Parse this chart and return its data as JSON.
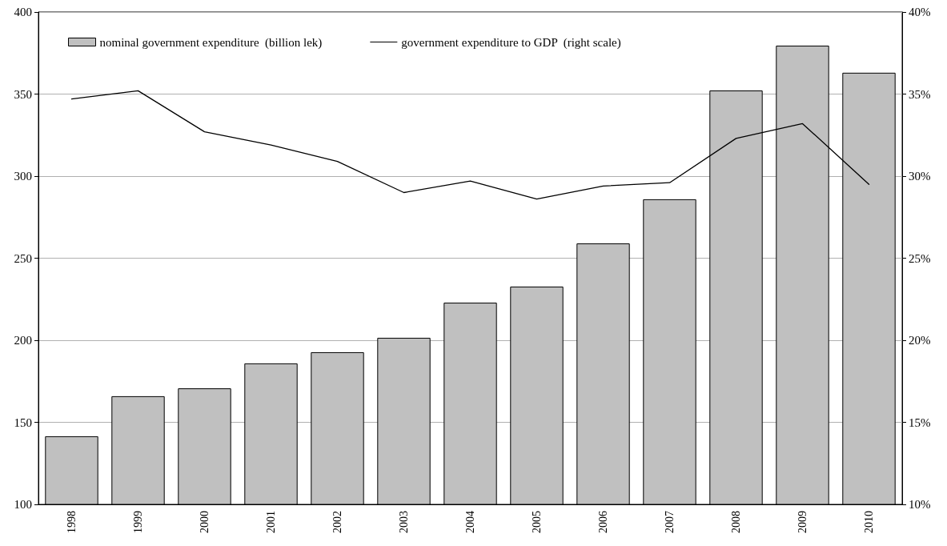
{
  "chart_data": {
    "type": "bar",
    "categories": [
      "1998",
      "1999",
      "2000",
      "2001",
      "2002",
      "2003",
      "2004",
      "2005",
      "2006",
      "2007",
      "2008",
      "2009",
      "2010"
    ],
    "series": [
      {
        "name": "nominal government expenditure  (billion lek)",
        "color": "#c0c0c0",
        "values": [
          141.5,
          165.9,
          170.7,
          185.9,
          192.7,
          201.5,
          222.9,
          232.7,
          259,
          285.9,
          352.2,
          379.5,
          363
        ]
      },
      {
        "name": "government expenditure to GDP  (right scale)",
        "type": "line",
        "axis": "y2",
        "color": "#000000",
        "values": [
          34.7,
          35.2,
          32.7,
          31.9,
          30.9,
          29.0,
          29.7,
          28.6,
          29.4,
          29.6,
          32.3,
          33.2,
          29.5
        ]
      }
    ],
    "ylim": [
      100,
      400
    ],
    "yticks": [
      100,
      150,
      200,
      250,
      300,
      350,
      400
    ],
    "y2lim": [
      10,
      40
    ],
    "y2ticks": [
      {
        "value": 10,
        "label": "10%"
      },
      {
        "value": 15,
        "label": "15%"
      },
      {
        "value": 20,
        "label": "20%"
      },
      {
        "value": 25,
        "label": "25%"
      },
      {
        "value": 30,
        "label": "30%"
      },
      {
        "value": 35,
        "label": "35%"
      },
      {
        "value": 40,
        "label": "40%"
      }
    ],
    "grid": "y",
    "legend": "top left",
    "marker": "none",
    "line_style": "solid"
  }
}
